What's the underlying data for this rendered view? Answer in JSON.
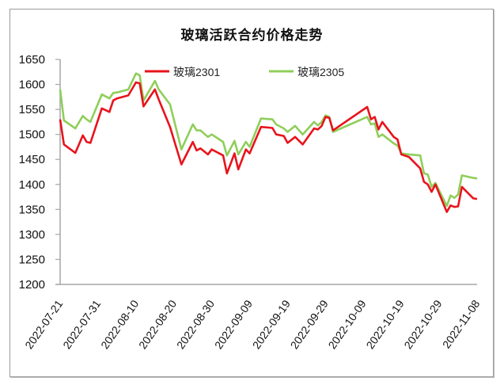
{
  "chart_data": {
    "type": "line",
    "title": "玻璃活跃合约价格走势",
    "xlabel": "",
    "ylabel": "",
    "ylim": [
      1200,
      1650
    ],
    "yticks": [
      1200,
      1250,
      1300,
      1350,
      1400,
      1450,
      1500,
      1550,
      1600,
      1650
    ],
    "xticks": [
      "2022-07-21",
      "2022-07-31",
      "2022-08-10",
      "2022-08-20",
      "2022-08-30",
      "2022-09-09",
      "2022-09-19",
      "2022-09-29",
      "2022-10-09",
      "2022-10-19",
      "2022-10-29",
      "2022-11-08"
    ],
    "grid": false,
    "legend_position": "top",
    "series": [
      {
        "name": "玻璃2301",
        "color": "#e8141c",
        "points": [
          [
            "2022-07-21",
            1530
          ],
          [
            "2022-07-22",
            1480
          ],
          [
            "2022-07-25",
            1463
          ],
          [
            "2022-07-27",
            1498
          ],
          [
            "2022-07-28",
            1485
          ],
          [
            "2022-07-29",
            1483
          ],
          [
            "2022-08-01",
            1552
          ],
          [
            "2022-08-03",
            1545
          ],
          [
            "2022-08-04",
            1568
          ],
          [
            "2022-08-05",
            1572
          ],
          [
            "2022-08-08",
            1578
          ],
          [
            "2022-08-10",
            1604
          ],
          [
            "2022-08-11",
            1602
          ],
          [
            "2022-08-12",
            1556
          ],
          [
            "2022-08-15",
            1590
          ],
          [
            "2022-08-16",
            1570
          ],
          [
            "2022-08-19",
            1515
          ],
          [
            "2022-08-22",
            1440
          ],
          [
            "2022-08-25",
            1485
          ],
          [
            "2022-08-26",
            1468
          ],
          [
            "2022-08-27",
            1472
          ],
          [
            "2022-08-29",
            1460
          ],
          [
            "2022-08-30",
            1470
          ],
          [
            "2022-09-02",
            1458
          ],
          [
            "2022-09-03",
            1422
          ],
          [
            "2022-09-05",
            1462
          ],
          [
            "2022-09-06",
            1430
          ],
          [
            "2022-09-08",
            1470
          ],
          [
            "2022-09-09",
            1462
          ],
          [
            "2022-09-12",
            1515
          ],
          [
            "2022-09-15",
            1513
          ],
          [
            "2022-09-16",
            1500
          ],
          [
            "2022-09-18",
            1497
          ],
          [
            "2022-09-19",
            1483
          ],
          [
            "2022-09-21",
            1495
          ],
          [
            "2022-09-23",
            1480
          ],
          [
            "2022-09-26",
            1512
          ],
          [
            "2022-09-27",
            1510
          ],
          [
            "2022-09-28",
            1517
          ],
          [
            "2022-09-29",
            1535
          ],
          [
            "2022-09-30",
            1533
          ],
          [
            "2022-10-01",
            1508
          ],
          [
            "2022-10-10",
            1555
          ],
          [
            "2022-10-11",
            1530
          ],
          [
            "2022-10-12",
            1535
          ],
          [
            "2022-10-13",
            1510
          ],
          [
            "2022-10-14",
            1525
          ],
          [
            "2022-10-17",
            1495
          ],
          [
            "2022-10-18",
            1490
          ],
          [
            "2022-10-19",
            1460
          ],
          [
            "2022-10-21",
            1455
          ],
          [
            "2022-10-24",
            1432
          ],
          [
            "2022-10-25",
            1405
          ],
          [
            "2022-10-26",
            1400
          ],
          [
            "2022-10-27",
            1385
          ],
          [
            "2022-10-28",
            1400
          ],
          [
            "2022-10-31",
            1345
          ],
          [
            "2022-11-01",
            1358
          ],
          [
            "2022-11-02",
            1355
          ],
          [
            "2022-11-03",
            1356
          ],
          [
            "2022-11-04",
            1395
          ],
          [
            "2022-11-07",
            1372
          ],
          [
            "2022-11-08",
            1371
          ]
        ]
      },
      {
        "name": "玻璃2305",
        "color": "#8fce5a",
        "points": [
          [
            "2022-07-21",
            1590
          ],
          [
            "2022-07-22",
            1528
          ],
          [
            "2022-07-25",
            1512
          ],
          [
            "2022-07-27",
            1537
          ],
          [
            "2022-07-28",
            1530
          ],
          [
            "2022-07-29",
            1525
          ],
          [
            "2022-08-01",
            1580
          ],
          [
            "2022-08-03",
            1572
          ],
          [
            "2022-08-04",
            1583
          ],
          [
            "2022-08-05",
            1584
          ],
          [
            "2022-08-08",
            1590
          ],
          [
            "2022-08-10",
            1622
          ],
          [
            "2022-08-11",
            1618
          ],
          [
            "2022-08-12",
            1568
          ],
          [
            "2022-08-15",
            1607
          ],
          [
            "2022-08-16",
            1590
          ],
          [
            "2022-08-19",
            1560
          ],
          [
            "2022-08-22",
            1470
          ],
          [
            "2022-08-25",
            1520
          ],
          [
            "2022-08-26",
            1508
          ],
          [
            "2022-08-27",
            1508
          ],
          [
            "2022-08-29",
            1495
          ],
          [
            "2022-08-30",
            1500
          ],
          [
            "2022-09-02",
            1485
          ],
          [
            "2022-09-03",
            1458
          ],
          [
            "2022-09-05",
            1487
          ],
          [
            "2022-09-06",
            1460
          ],
          [
            "2022-09-08",
            1485
          ],
          [
            "2022-09-09",
            1475
          ],
          [
            "2022-09-12",
            1532
          ],
          [
            "2022-09-15",
            1530
          ],
          [
            "2022-09-16",
            1520
          ],
          [
            "2022-09-18",
            1512
          ],
          [
            "2022-09-19",
            1505
          ],
          [
            "2022-09-21",
            1517
          ],
          [
            "2022-09-23",
            1500
          ],
          [
            "2022-09-26",
            1525
          ],
          [
            "2022-09-27",
            1518
          ],
          [
            "2022-09-28",
            1525
          ],
          [
            "2022-09-29",
            1538
          ],
          [
            "2022-09-30",
            1535
          ],
          [
            "2022-10-01",
            1505
          ],
          [
            "2022-10-10",
            1535
          ],
          [
            "2022-10-11",
            1520
          ],
          [
            "2022-10-12",
            1522
          ],
          [
            "2022-10-13",
            1495
          ],
          [
            "2022-10-14",
            1500
          ],
          [
            "2022-10-17",
            1482
          ],
          [
            "2022-10-18",
            1478
          ],
          [
            "2022-10-19",
            1462
          ],
          [
            "2022-10-21",
            1460
          ],
          [
            "2022-10-24",
            1458
          ],
          [
            "2022-10-25",
            1422
          ],
          [
            "2022-10-26",
            1420
          ],
          [
            "2022-10-27",
            1395
          ],
          [
            "2022-10-28",
            1403
          ],
          [
            "2022-10-31",
            1357
          ],
          [
            "2022-11-01",
            1378
          ],
          [
            "2022-11-02",
            1373
          ],
          [
            "2022-11-03",
            1380
          ],
          [
            "2022-11-04",
            1418
          ],
          [
            "2022-11-07",
            1413
          ],
          [
            "2022-11-08",
            1412
          ]
        ]
      }
    ]
  }
}
